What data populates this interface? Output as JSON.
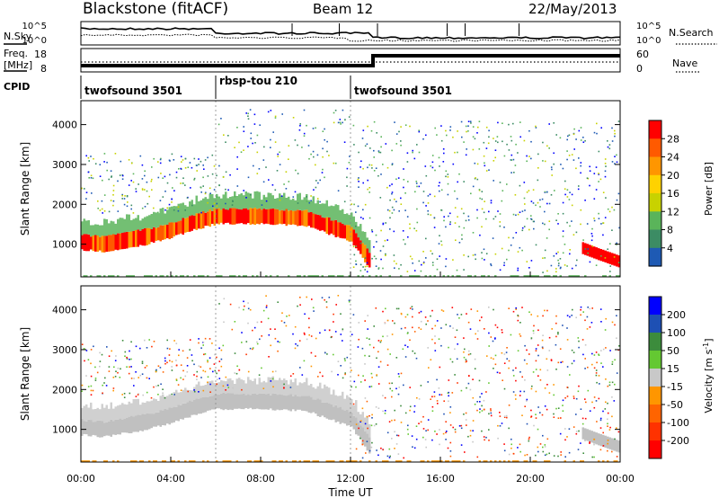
{
  "header": {
    "title": "Blackstone (fitACF)",
    "beam": "Beam 12",
    "date": "22/May/2013"
  },
  "panels": {
    "nsky_label": "N.Sky",
    "nsearch_label": "N.Search",
    "freq_label_top": "Freq.",
    "freq_label_unit": "[MHz]",
    "nave_label": "Nave",
    "cpid_label": "CPID",
    "nsky_ticks": [
      "10^5",
      "10^0"
    ],
    "nsearch_ticks": [
      "10^5",
      "10^0"
    ],
    "freq_ticks": [
      "18",
      "8"
    ],
    "nave_ticks": [
      "60",
      "0"
    ]
  },
  "cpid_segments": [
    {
      "label": "twofsound 3501",
      "start": 0,
      "end": 6
    },
    {
      "label": "rbsp-tou 210",
      "start": 6,
      "end": 12
    },
    {
      "label": "twofsound 3501",
      "start": 12,
      "end": 24
    }
  ],
  "axes": {
    "ylabel": "Slant Range [km]",
    "xlabel": "Time UT",
    "xticks": [
      "00:00",
      "04:00",
      "08:00",
      "12:00",
      "16:00",
      "20:00",
      "00:00"
    ],
    "yticks": [
      "1000",
      "2000",
      "3000",
      "4000"
    ]
  },
  "colorbars": {
    "power": {
      "label": "Power [dB]",
      "ticks": [
        "28",
        "24",
        "20",
        "16",
        "12",
        "8",
        "4"
      ],
      "colors": [
        "#ff0000",
        "#ff5a00",
        "#ff9600",
        "#ffd200",
        "#c8d200",
        "#5ab45a",
        "#3c8c64",
        "#1e5ab4",
        "#0000ff"
      ]
    },
    "velocity": {
      "label_main": "Velocity [m s",
      "label_sup": "-1",
      "label_end": "]",
      "ticks": [
        "200",
        "100",
        "50",
        "15",
        "-15",
        "-50",
        "-100",
        "-200"
      ],
      "colors": [
        "#0000ff",
        "#1e50b4",
        "#3c8c3c",
        "#64c832",
        "#c8c8c8",
        "#ff9600",
        "#ff6400",
        "#ff3200",
        "#ff0000"
      ]
    }
  },
  "chart_data": {
    "type": "heatmap",
    "title": "Blackstone (fitACF)",
    "xlabel": "Time UT",
    "ylabel": "Slant Range [km]",
    "xlim_hours": [
      0,
      24
    ],
    "ylim_km": [
      180,
      4600
    ],
    "ground_scatter_color": "#c0c0c0",
    "main_echo_band": [
      {
        "t": 0,
        "range": 1050
      },
      {
        "t": 1,
        "range": 1000
      },
      {
        "t": 2,
        "range": 1100
      },
      {
        "t": 3,
        "range": 1200
      },
      {
        "t": 4,
        "range": 1350
      },
      {
        "t": 5,
        "range": 1550
      },
      {
        "t": 6,
        "range": 1700
      },
      {
        "t": 8,
        "range": 1700
      },
      {
        "t": 10,
        "range": 1650
      },
      {
        "t": 11,
        "range": 1450
      },
      {
        "t": 12,
        "range": 1250
      },
      {
        "t": 12.8,
        "range": 600
      }
    ],
    "late_echo_band": [
      {
        "t": 22.3,
        "range": 900
      },
      {
        "t": 23,
        "range": 750
      },
      {
        "t": 24,
        "range": 550
      }
    ],
    "power_db_range": [
      0,
      32
    ],
    "velocity_range_ms": [
      -250,
      250
    ]
  }
}
